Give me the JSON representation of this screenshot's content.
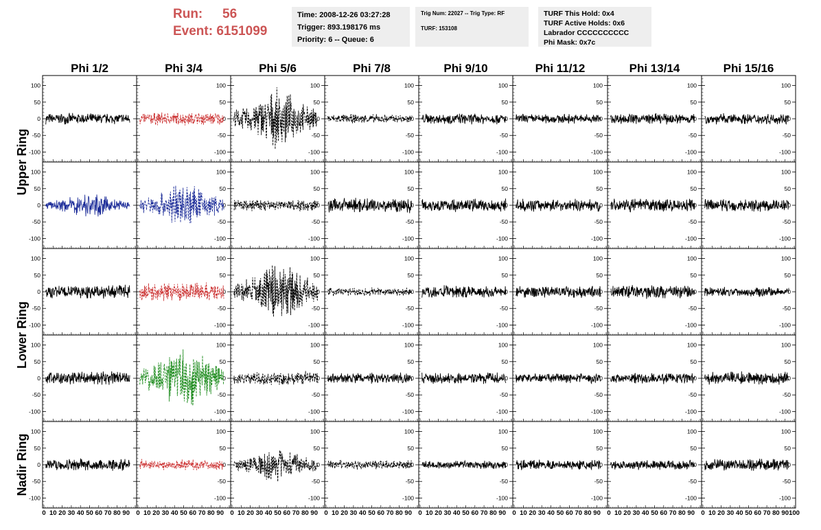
{
  "header": {
    "run_label": "Run:",
    "run_value": "56",
    "event_label": "Event:",
    "event_value": "6151099",
    "time": "Time: 2008-12-26 03:27:28",
    "trigger": "Trigger: 893.198176 ms",
    "priority": "Priority: 6 -- Queue: 6",
    "trig_num": "Trig Num: 22027 -- Trig Type: RF",
    "turf": "TURF: 153108",
    "turf_this_hold": "TURF This Hold: 0x4",
    "turf_active_holds": "TURF Active Holds: 0x6",
    "labrador": "Labrador CCCCCCCCCC",
    "phi_mask": "Phi Mask: 0x7c"
  },
  "chart_data": {
    "type": "line",
    "columns": [
      "Phi 1/2",
      "Phi 3/4",
      "Phi 5/6",
      "Phi 7/8",
      "Phi 9/10",
      "Phi 11/12",
      "Phi 13/14",
      "Phi 15/16"
    ],
    "rows": [
      "Upper Ring",
      "Upper Ring",
      "Lower Ring",
      "Lower Ring",
      "Nadir Ring"
    ],
    "row_groups": [
      "Upper Ring",
      "Lower Ring",
      "Nadir Ring"
    ],
    "xlim": [
      0,
      100
    ],
    "ylim": [
      -130,
      130
    ],
    "x_tick_labels": [
      "0",
      "10",
      "20",
      "30",
      "40",
      "50",
      "60",
      "70",
      "80",
      "90",
      "100"
    ],
    "y_tick_labels": [
      "100",
      "50",
      "0",
      "-50",
      "-100"
    ],
    "colors": {
      "black": "#000000",
      "red": "#cc3333",
      "blue": "#1f2f9a",
      "green": "#1e8c1e"
    },
    "panels": [
      {
        "row": 0,
        "col": 0,
        "color": "black",
        "amplitude": 18,
        "style": "solid"
      },
      {
        "row": 0,
        "col": 1,
        "color": "red",
        "amplitude": 22,
        "style": "dashed"
      },
      {
        "row": 0,
        "col": 2,
        "color": "black",
        "amplitude": 95,
        "style": "dashed"
      },
      {
        "row": 0,
        "col": 3,
        "color": "black",
        "amplitude": 15,
        "style": "dashed"
      },
      {
        "row": 0,
        "col": 4,
        "color": "black",
        "amplitude": 18,
        "style": "solid"
      },
      {
        "row": 0,
        "col": 5,
        "color": "black",
        "amplitude": 16,
        "style": "solid"
      },
      {
        "row": 0,
        "col": 6,
        "color": "black",
        "amplitude": 18,
        "style": "solid"
      },
      {
        "row": 0,
        "col": 7,
        "color": "black",
        "amplitude": 18,
        "style": "solid"
      },
      {
        "row": 1,
        "col": 0,
        "color": "blue",
        "amplitude": 40,
        "style": "solid"
      },
      {
        "row": 1,
        "col": 1,
        "color": "blue",
        "amplitude": 78,
        "style": "dashed"
      },
      {
        "row": 1,
        "col": 2,
        "color": "black",
        "amplitude": 20,
        "style": "dashed"
      },
      {
        "row": 1,
        "col": 3,
        "color": "black",
        "amplitude": 25,
        "style": "solid"
      },
      {
        "row": 1,
        "col": 4,
        "color": "black",
        "amplitude": 22,
        "style": "solid"
      },
      {
        "row": 1,
        "col": 5,
        "color": "black",
        "amplitude": 20,
        "style": "solid"
      },
      {
        "row": 1,
        "col": 6,
        "color": "black",
        "amplitude": 22,
        "style": "solid"
      },
      {
        "row": 1,
        "col": 7,
        "color": "black",
        "amplitude": 22,
        "style": "solid"
      },
      {
        "row": 2,
        "col": 0,
        "color": "black",
        "amplitude": 22,
        "style": "solid"
      },
      {
        "row": 2,
        "col": 1,
        "color": "red",
        "amplitude": 30,
        "style": "dashed"
      },
      {
        "row": 2,
        "col": 2,
        "color": "black",
        "amplitude": 100,
        "style": "dashed"
      },
      {
        "row": 2,
        "col": 3,
        "color": "black",
        "amplitude": 15,
        "style": "dashed"
      },
      {
        "row": 2,
        "col": 4,
        "color": "black",
        "amplitude": 22,
        "style": "solid"
      },
      {
        "row": 2,
        "col": 5,
        "color": "black",
        "amplitude": 20,
        "style": "solid"
      },
      {
        "row": 2,
        "col": 6,
        "color": "black",
        "amplitude": 22,
        "style": "solid"
      },
      {
        "row": 2,
        "col": 7,
        "color": "black",
        "amplitude": 16,
        "style": "solid"
      },
      {
        "row": 3,
        "col": 0,
        "color": "black",
        "amplitude": 22,
        "style": "solid"
      },
      {
        "row": 3,
        "col": 1,
        "color": "green",
        "amplitude": 110,
        "style": "dashed"
      },
      {
        "row": 3,
        "col": 2,
        "color": "black",
        "amplitude": 22,
        "style": "dashed"
      },
      {
        "row": 3,
        "col": 3,
        "color": "black",
        "amplitude": 18,
        "style": "solid"
      },
      {
        "row": 3,
        "col": 4,
        "color": "black",
        "amplitude": 18,
        "style": "solid"
      },
      {
        "row": 3,
        "col": 5,
        "color": "black",
        "amplitude": 16,
        "style": "solid"
      },
      {
        "row": 3,
        "col": 6,
        "color": "black",
        "amplitude": 18,
        "style": "solid"
      },
      {
        "row": 3,
        "col": 7,
        "color": "black",
        "amplitude": 22,
        "style": "solid"
      },
      {
        "row": 4,
        "col": 0,
        "color": "black",
        "amplitude": 20,
        "style": "solid"
      },
      {
        "row": 4,
        "col": 1,
        "color": "red",
        "amplitude": 18,
        "style": "dashed"
      },
      {
        "row": 4,
        "col": 2,
        "color": "black",
        "amplitude": 55,
        "style": "dashed"
      },
      {
        "row": 4,
        "col": 3,
        "color": "black",
        "amplitude": 15,
        "style": "dashed"
      },
      {
        "row": 4,
        "col": 4,
        "color": "black",
        "amplitude": 14,
        "style": "solid"
      },
      {
        "row": 4,
        "col": 5,
        "color": "black",
        "amplitude": 16,
        "style": "solid"
      },
      {
        "row": 4,
        "col": 6,
        "color": "black",
        "amplitude": 16,
        "style": "solid"
      },
      {
        "row": 4,
        "col": 7,
        "color": "black",
        "amplitude": 20,
        "style": "solid"
      }
    ]
  }
}
